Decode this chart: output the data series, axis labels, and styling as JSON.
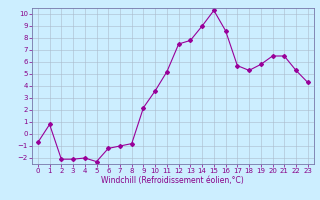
{
  "x": [
    0,
    1,
    2,
    3,
    4,
    5,
    6,
    7,
    8,
    9,
    10,
    11,
    12,
    13,
    14,
    15,
    16,
    17,
    18,
    19,
    20,
    21,
    22,
    23
  ],
  "y": [
    -0.7,
    0.8,
    -2.1,
    -2.1,
    -2.0,
    -2.3,
    -1.2,
    -1.0,
    -0.8,
    2.2,
    3.6,
    5.2,
    7.5,
    7.8,
    9.0,
    10.3,
    8.6,
    5.7,
    5.3,
    5.8,
    6.5,
    6.5,
    5.3,
    4.3
  ],
  "line_color": "#990099",
  "marker": "D",
  "marker_size": 2,
  "bg_color": "#cceeff",
  "grid_color": "#aabbcc",
  "xlabel": "Windchill (Refroidissement éolien,°C)",
  "xlabel_color": "#880088",
  "tick_color": "#880088",
  "ylim": [
    -2.5,
    10.5
  ],
  "xlim": [
    -0.5,
    23.5
  ],
  "yticks": [
    -2,
    -1,
    0,
    1,
    2,
    3,
    4,
    5,
    6,
    7,
    8,
    9,
    10
  ],
  "xticks": [
    0,
    1,
    2,
    3,
    4,
    5,
    6,
    7,
    8,
    9,
    10,
    11,
    12,
    13,
    14,
    15,
    16,
    17,
    18,
    19,
    20,
    21,
    22,
    23
  ],
  "spine_color": "#7777aa",
  "tick_labelsize": 5,
  "xlabel_fontsize": 5.5,
  "linewidth": 0.8
}
